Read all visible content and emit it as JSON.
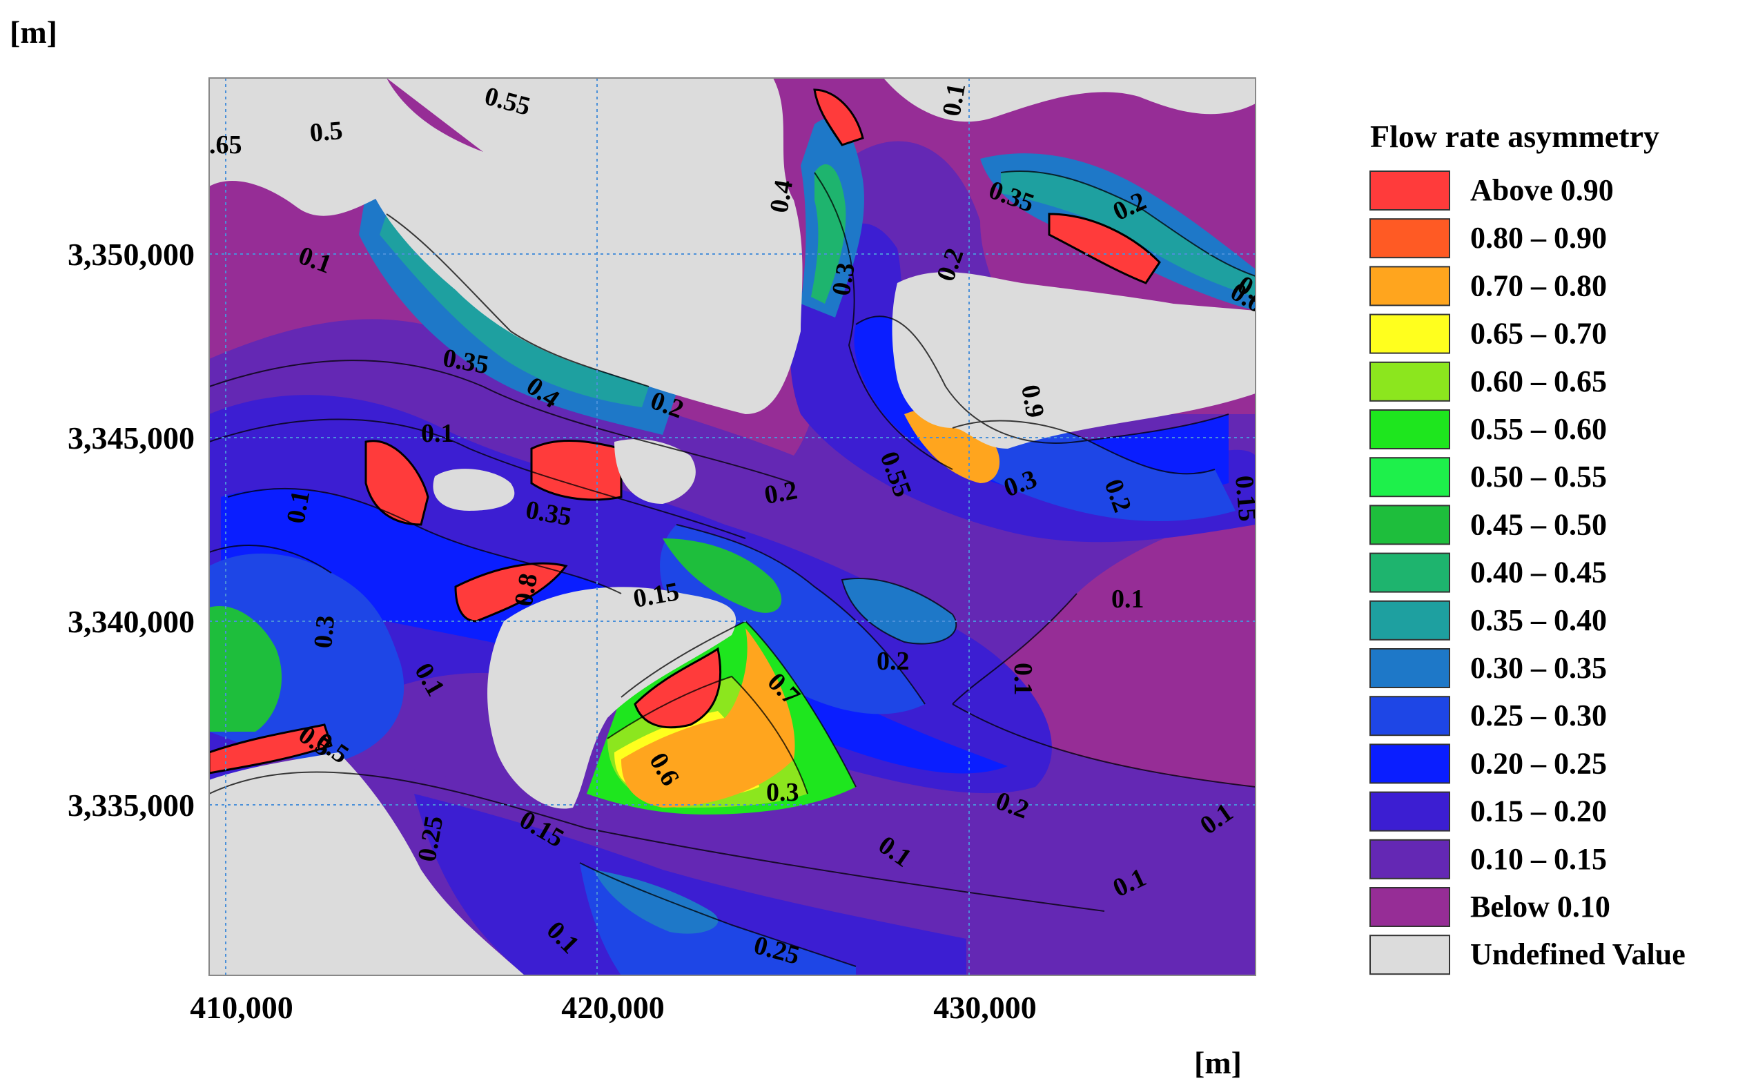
{
  "map": {
    "x_unit": "[m]",
    "y_unit": "[m]",
    "x_ticks": [
      "410,000",
      "420,000",
      "430,000"
    ],
    "y_ticks": [
      "3,350,000",
      "3,345,000",
      "3,340,000",
      "3,335,000"
    ]
  },
  "legend": {
    "title": "Flow rate asymmetry",
    "items": [
      {
        "label": "Above 0.90",
        "color": "#ff3b3b"
      },
      {
        "label": "0.80 – 0.90",
        "color": "#ff5a24"
      },
      {
        "label": "0.70 – 0.80",
        "color": "#ffa51e"
      },
      {
        "label": "0.65 – 0.70",
        "color": "#ffff1e"
      },
      {
        "label": "0.60 – 0.65",
        "color": "#8ce61e"
      },
      {
        "label": "0.55 – 0.60",
        "color": "#1ee61e"
      },
      {
        "label": "0.50 – 0.55",
        "color": "#1ef04b"
      },
      {
        "label": "0.45 – 0.50",
        "color": "#1ebe3c"
      },
      {
        "label": "0.40 – 0.45",
        "color": "#1eb46e"
      },
      {
        "label": "0.35 – 0.40",
        "color": "#1ea0a0"
      },
      {
        "label": "0.30 – 0.35",
        "color": "#1e78c8"
      },
      {
        "label": "0.25 – 0.30",
        "color": "#1e46e6"
      },
      {
        "label": "0.20 – 0.25",
        "color": "#0a1eff"
      },
      {
        "label": "0.15 – 0.20",
        "color": "#3c1ed2"
      },
      {
        "label": "0.10 – 0.15",
        "color": "#6428b4"
      },
      {
        "label": "Below  0.10",
        "color": "#962d96"
      },
      {
        "label": "Undefined Value",
        "color": "#dcdcdc"
      }
    ]
  },
  "contour_labels": [
    "0.55",
    "0.5",
    ".65",
    "0.1",
    "0.4",
    "0.3",
    "0.35",
    "0.2",
    "0.6",
    "0.1",
    "0.35",
    "0.4",
    "0.2",
    "0.1",
    "0.1",
    "0.35",
    "0.2",
    "0.9",
    "0.55",
    "0.3",
    "0.2",
    "0.15",
    "0.15",
    "0.8",
    "0.3",
    "0.1",
    "0.1",
    "0.2",
    "0.7",
    "0.1",
    "0.5",
    "0.6",
    "0.3",
    "0.2",
    "0.25",
    "0.15",
    "0.1",
    "0.1",
    "0.1",
    "0.1",
    "0.25",
    "0.5",
    "0.6",
    "0.2"
  ]
}
